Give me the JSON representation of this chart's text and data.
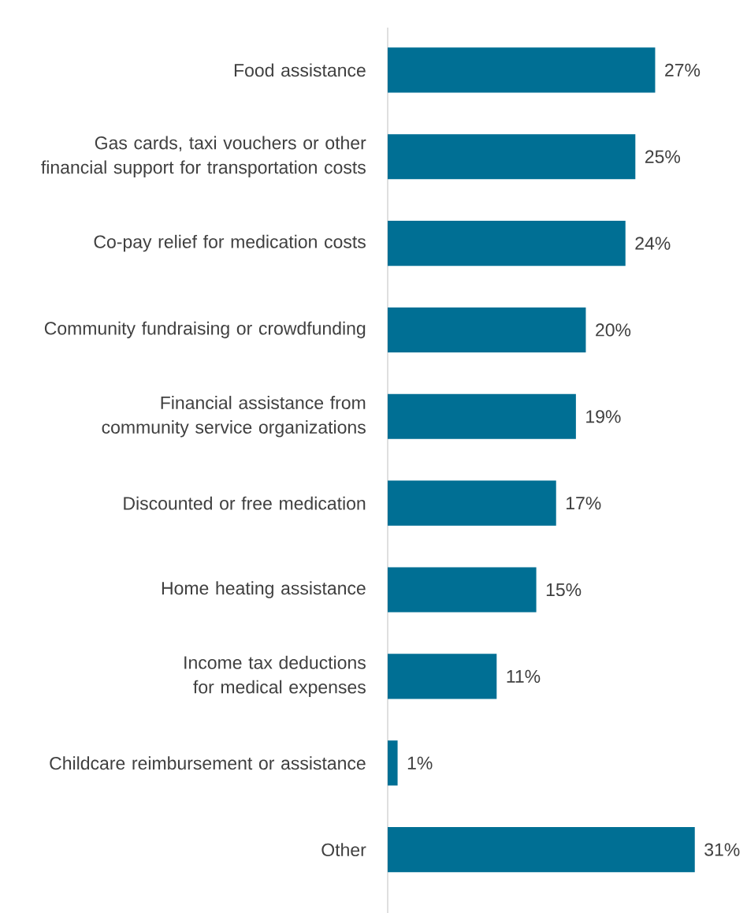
{
  "chart_data": {
    "type": "bar",
    "orientation": "horizontal",
    "categories": [
      "Food assistance",
      "Gas cards, taxi vouchers or other financial support for transportation costs",
      "Co-pay relief for medication costs",
      "Community fundraising or crowdfunding",
      "Financial assistance from community service organizations",
      "Discounted or free medication",
      "Home heating assistance",
      "Income tax deductions for medical expenses",
      "Childcare reimbursement or assistance",
      "Other"
    ],
    "values": [
      27,
      25,
      24,
      20,
      19,
      17,
      15,
      11,
      1,
      31
    ],
    "value_labels": [
      "27%",
      "25%",
      "24%",
      "20%",
      "19%",
      "17%",
      "15%",
      "11%",
      "1%",
      "31%"
    ],
    "color": "#006f94"
  }
}
